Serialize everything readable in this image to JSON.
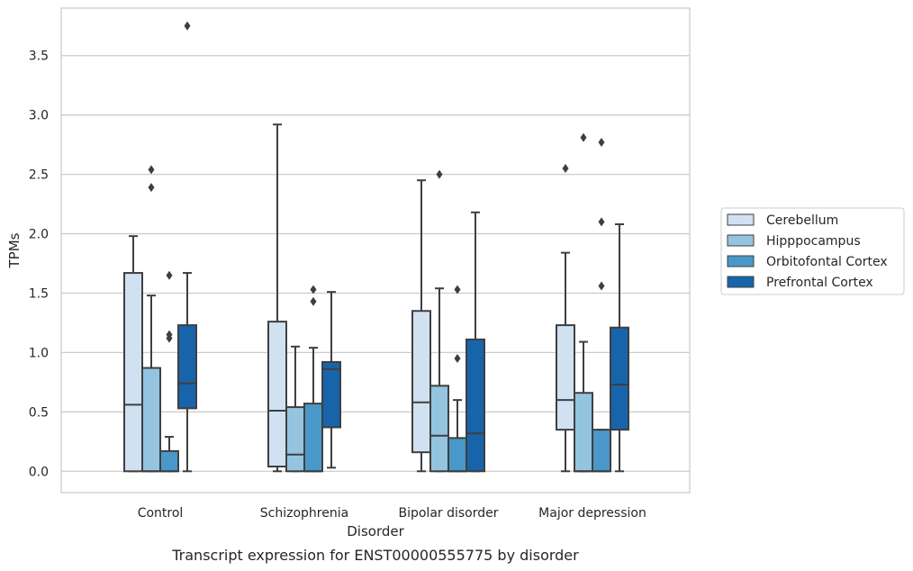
{
  "chart_data": {
    "type": "box",
    "title": "Transcript expression for ENST00000555775 by disorder",
    "xlabel": "Disorder",
    "ylabel": "TPMs",
    "ylim": [
      -0.18,
      3.9
    ],
    "yticks": [
      0.0,
      0.5,
      1.0,
      1.5,
      2.0,
      2.5,
      3.0,
      3.5
    ],
    "ytick_labels": [
      "0.0",
      "0.5",
      "1.0",
      "1.5",
      "2.0",
      "2.5",
      "3.0",
      "3.5"
    ],
    "grid": "horizontal",
    "legend_position": "right",
    "categories": [
      "Control",
      "Schizophrenia",
      "Bipolar disorder",
      "Major depression"
    ],
    "series": [
      {
        "name": "Cerebellum",
        "color": "#d0e1f2",
        "boxes": [
          {
            "whislo": 0.0,
            "q1": 0.0,
            "med": 0.56,
            "q3": 1.67,
            "whishi": 1.98,
            "fliers": []
          },
          {
            "whislo": 0.0,
            "q1": 0.04,
            "med": 0.51,
            "q3": 1.26,
            "whishi": 2.92,
            "fliers": []
          },
          {
            "whislo": 0.0,
            "q1": 0.16,
            "med": 0.58,
            "q3": 1.35,
            "whishi": 2.45,
            "fliers": []
          },
          {
            "whislo": 0.0,
            "q1": 0.35,
            "med": 0.6,
            "q3": 1.23,
            "whishi": 1.84,
            "fliers": [
              2.55
            ]
          }
        ]
      },
      {
        "name": "Hipppocampus",
        "color": "#94c4df",
        "boxes": [
          {
            "whislo": 0.0,
            "q1": 0.0,
            "med": 0.0,
            "q3": 0.87,
            "whishi": 1.48,
            "fliers": [
              2.39,
              2.54
            ]
          },
          {
            "whislo": 0.0,
            "q1": 0.0,
            "med": 0.14,
            "q3": 0.54,
            "whishi": 1.05,
            "fliers": []
          },
          {
            "whislo": 0.0,
            "q1": 0.0,
            "med": 0.3,
            "q3": 0.72,
            "whishi": 1.54,
            "fliers": [
              2.5
            ]
          },
          {
            "whislo": 0.0,
            "q1": 0.0,
            "med": 0.0,
            "q3": 0.66,
            "whishi": 1.09,
            "fliers": [
              2.81
            ]
          }
        ]
      },
      {
        "name": "Orbitofontal Cortex",
        "color": "#4a98c9",
        "boxes": [
          {
            "whislo": 0.0,
            "q1": 0.0,
            "med": 0.0,
            "q3": 0.17,
            "whishi": 0.29,
            "fliers": [
              1.12,
              1.15,
              1.65
            ]
          },
          {
            "whislo": 0.0,
            "q1": 0.0,
            "med": 0.0,
            "q3": 0.57,
            "whishi": 1.04,
            "fliers": [
              1.43,
              1.53
            ]
          },
          {
            "whislo": 0.0,
            "q1": 0.0,
            "med": 0.0,
            "q3": 0.28,
            "whishi": 0.6,
            "fliers": [
              0.95,
              1.53
            ]
          },
          {
            "whislo": 0.0,
            "q1": 0.0,
            "med": 0.0,
            "q3": 0.35,
            "whishi": 0.35,
            "fliers": [
              1.56,
              2.1,
              2.77
            ]
          }
        ]
      },
      {
        "name": "Prefrontal Cortex",
        "color": "#1764ab",
        "boxes": [
          {
            "whislo": 0.0,
            "q1": 0.53,
            "med": 0.74,
            "q3": 1.23,
            "whishi": 1.67,
            "fliers": [
              3.75
            ]
          },
          {
            "whislo": 0.03,
            "q1": 0.37,
            "med": 0.86,
            "q3": 0.92,
            "whishi": 1.51,
            "fliers": []
          },
          {
            "whislo": 0.0,
            "q1": 0.0,
            "med": 0.32,
            "q3": 1.11,
            "whishi": 2.18,
            "fliers": []
          },
          {
            "whislo": 0.0,
            "q1": 0.35,
            "med": 0.73,
            "q3": 1.21,
            "whishi": 2.08,
            "fliers": []
          }
        ]
      }
    ],
    "colors": {
      "box_edge": "#3f3f3f",
      "grid": "#cccccc",
      "frame": "#cccccc"
    }
  }
}
